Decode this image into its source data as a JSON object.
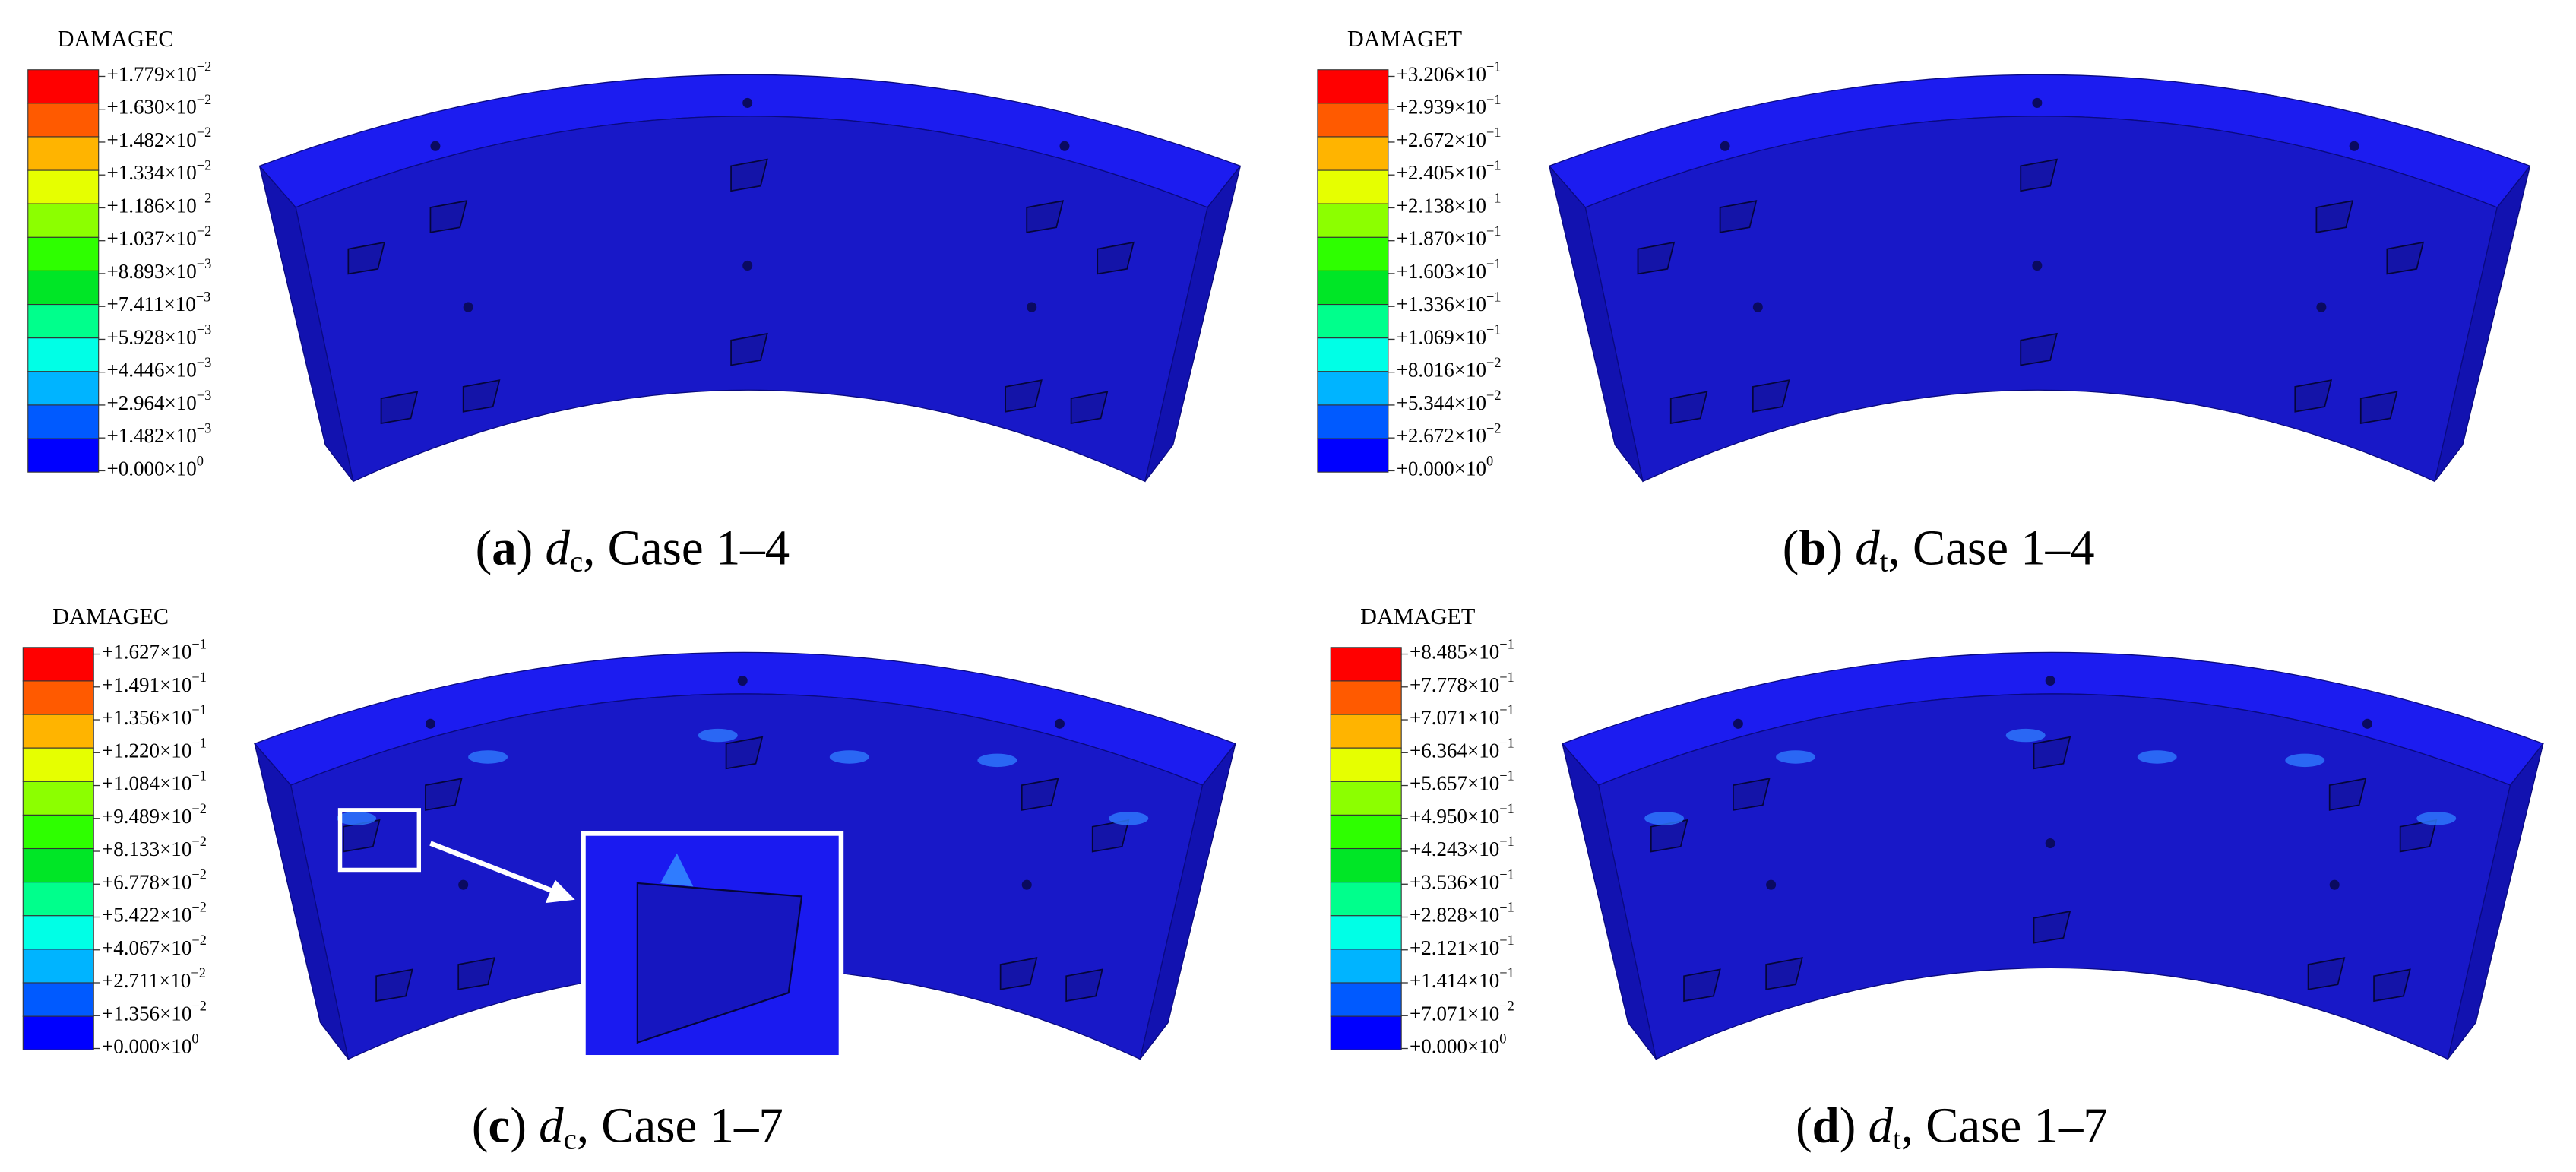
{
  "band_colors": [
    "#ff0000",
    "#ff5a00",
    "#ffb400",
    "#e6ff00",
    "#8cff00",
    "#2eff00",
    "#00e626",
    "#00ff8c",
    "#00ffe6",
    "#00b4ff",
    "#005aff",
    "#0000ff"
  ],
  "panels": [
    {
      "legend_title": "DAMAGEC",
      "labels": [
        {
          "base": "+1.779×10",
          "exp": "−2"
        },
        {
          "base": "+1.630×10",
          "exp": "−2"
        },
        {
          "base": "+1.482×10",
          "exp": "−2"
        },
        {
          "base": "+1.334×10",
          "exp": "−2"
        },
        {
          "base": "+1.186×10",
          "exp": "−2"
        },
        {
          "base": "+1.037×10",
          "exp": "−2"
        },
        {
          "base": "+8.893×10",
          "exp": "−3"
        },
        {
          "base": "+7.411×10",
          "exp": "−3"
        },
        {
          "base": "+5.928×10",
          "exp": "−3"
        },
        {
          "base": "+4.446×10",
          "exp": "−3"
        },
        {
          "base": "+2.964×10",
          "exp": "−3"
        },
        {
          "base": "+1.482×10",
          "exp": "−3"
        },
        {
          "base": "+0.000×10",
          "exp": "0"
        }
      ],
      "caption": [
        "(",
        "a",
        ") ",
        "d",
        "c",
        ", Case 1–4"
      ]
    },
    {
      "legend_title": "DAMAGET",
      "labels": [
        {
          "base": "+3.206×10",
          "exp": "−1"
        },
        {
          "base": "+2.939×10",
          "exp": "−1"
        },
        {
          "base": "+2.672×10",
          "exp": "−1"
        },
        {
          "base": "+2.405×10",
          "exp": "−1"
        },
        {
          "base": "+2.138×10",
          "exp": "−1"
        },
        {
          "base": "+1.870×10",
          "exp": "−1"
        },
        {
          "base": "+1.603×10",
          "exp": "−1"
        },
        {
          "base": "+1.336×10",
          "exp": "−1"
        },
        {
          "base": "+1.069×10",
          "exp": "−1"
        },
        {
          "base": "+8.016×10",
          "exp": "−2"
        },
        {
          "base": "+5.344×10",
          "exp": "−2"
        },
        {
          "base": "+2.672×10",
          "exp": "−2"
        },
        {
          "base": "+0.000×10",
          "exp": "0"
        }
      ],
      "caption": [
        "(",
        "b",
        ") ",
        "d",
        "t",
        ", Case 1–4"
      ]
    },
    {
      "legend_title": "DAMAGEC",
      "labels": [
        {
          "base": "+1.627×10",
          "exp": "−1"
        },
        {
          "base": "+1.491×10",
          "exp": "−1"
        },
        {
          "base": "+1.356×10",
          "exp": "−1"
        },
        {
          "base": "+1.220×10",
          "exp": "−1"
        },
        {
          "base": "+1.084×10",
          "exp": "−1"
        },
        {
          "base": "+9.489×10",
          "exp": "−2"
        },
        {
          "base": "+8.133×10",
          "exp": "−2"
        },
        {
          "base": "+6.778×10",
          "exp": "−2"
        },
        {
          "base": "+5.422×10",
          "exp": "−2"
        },
        {
          "base": "+4.067×10",
          "exp": "−2"
        },
        {
          "base": "+2.711×10",
          "exp": "−2"
        },
        {
          "base": "+1.356×10",
          "exp": "−2"
        },
        {
          "base": "+0.000×10",
          "exp": "0"
        }
      ],
      "caption": [
        "(",
        "c",
        ") ",
        "d",
        "c",
        ", Case 1–7"
      ]
    },
    {
      "legend_title": "DAMAGET",
      "labels": [
        {
          "base": "+8.485×10",
          "exp": "−1"
        },
        {
          "base": "+7.778×10",
          "exp": "−1"
        },
        {
          "base": "+7.071×10",
          "exp": "−1"
        },
        {
          "base": "+6.364×10",
          "exp": "−1"
        },
        {
          "base": "+5.657×10",
          "exp": "−1"
        },
        {
          "base": "+4.950×10",
          "exp": "−1"
        },
        {
          "base": "+4.243×10",
          "exp": "−1"
        },
        {
          "base": "+3.536×10",
          "exp": "−1"
        },
        {
          "base": "+2.828×10",
          "exp": "−1"
        },
        {
          "base": "+2.121×10",
          "exp": "−1"
        },
        {
          "base": "+1.414×10",
          "exp": "−1"
        },
        {
          "base": "+7.071×10",
          "exp": "−2"
        },
        {
          "base": "+0.000×10",
          "exp": "0"
        }
      ],
      "caption": [
        "(",
        "d",
        ") ",
        "d",
        "t",
        ", Case 1–7"
      ]
    }
  ]
}
